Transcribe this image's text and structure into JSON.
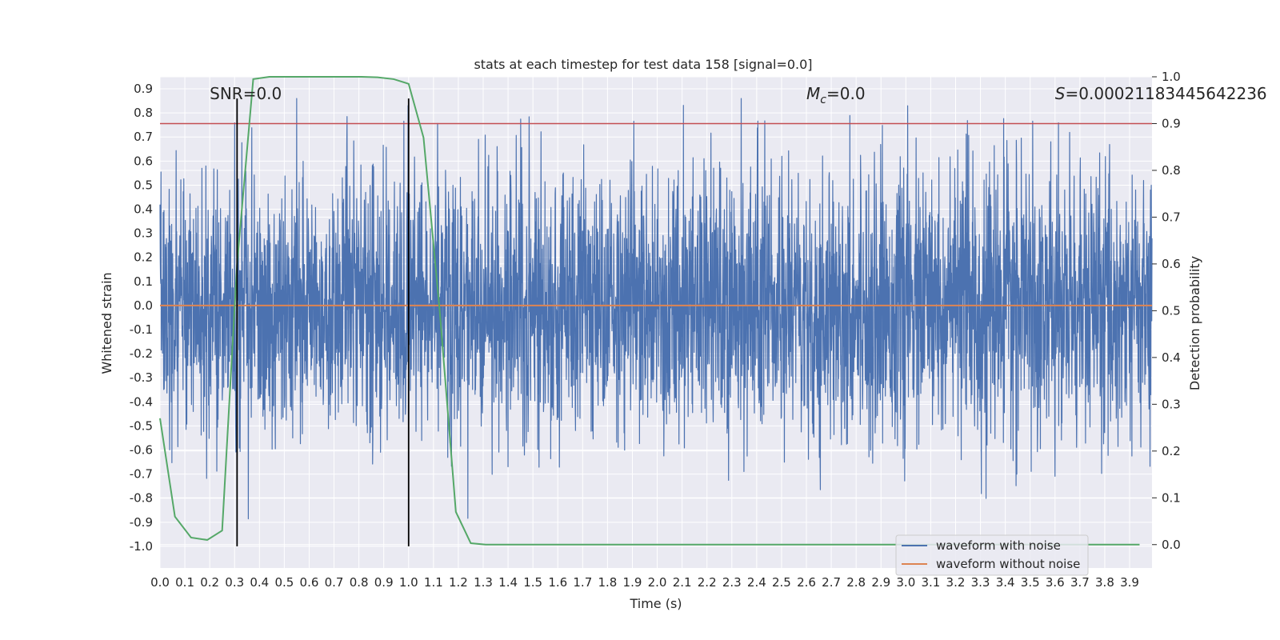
{
  "chart_data": {
    "type": "line",
    "title": "stats at each timestep for test data 158 [signal=0.0]",
    "xlabel": "Time (s)",
    "ylabel": "Whitened strain",
    "y2label": "Detection probability",
    "xlim": [
      0.0,
      3.99
    ],
    "ylim": [
      -1.09,
      0.95
    ],
    "y2lim": [
      -0.05,
      1.0
    ],
    "x_ticks": [
      "0.0",
      "0.1",
      "0.2",
      "0.3",
      "0.4",
      "0.5",
      "0.6",
      "0.7",
      "0.8",
      "0.9",
      "1.0",
      "1.1",
      "1.2",
      "1.3",
      "1.4",
      "1.5",
      "1.6",
      "1.7",
      "1.8",
      "1.9",
      "2.0",
      "2.1",
      "2.2",
      "2.3",
      "2.4",
      "2.5",
      "2.6",
      "2.7",
      "2.8",
      "2.9",
      "3.0",
      "3.1",
      "3.2",
      "3.3",
      "3.4",
      "3.5",
      "3.6",
      "3.7",
      "3.8",
      "3.9"
    ],
    "y_ticks": [
      "0.9",
      "0.8",
      "0.7",
      "0.6",
      "0.5",
      "0.4",
      "0.3",
      "0.2",
      "0.1",
      "0.0",
      "-0.1",
      "-0.2",
      "-0.3",
      "-0.4",
      "-0.5",
      "-0.6",
      "-0.7",
      "-0.8",
      "-0.9",
      "-1.0"
    ],
    "y2_ticks": [
      "1.0",
      "0.9",
      "0.8",
      "0.7",
      "0.6",
      "0.5",
      "0.4",
      "0.3",
      "0.2",
      "0.1",
      "0.0"
    ],
    "grid": true,
    "legend_position": "lower-right",
    "annotations": [
      {
        "text": "SNR=0.0",
        "x": 0.2,
        "y": 0.88
      },
      {
        "text": "M",
        "sub": "c",
        "suffix": "=0.0",
        "x": 2.6,
        "y": 0.88
      },
      {
        "text": "S",
        "suffix": "=0.00021183445642236",
        "x": 3.6,
        "y": 0.88
      }
    ],
    "series": [
      {
        "name": "waveform with noise",
        "color": "#4c72b0",
        "noise_amplitude": 0.5,
        "peak_min": -1.0,
        "peak_max": 0.86
      },
      {
        "name": "waveform without noise",
        "color": "#dd8452",
        "values_constant": 0.0
      }
    ],
    "detection_probability": {
      "color": "#55a868",
      "points": [
        [
          0.0,
          0.27
        ],
        [
          0.06,
          0.06
        ],
        [
          0.125,
          0.015
        ],
        [
          0.19,
          0.01
        ],
        [
          0.25,
          0.03
        ],
        [
          0.31,
          0.6
        ],
        [
          0.375,
          0.995
        ],
        [
          0.44,
          1.0
        ],
        [
          0.5,
          1.0
        ],
        [
          0.56,
          1.0
        ],
        [
          0.625,
          1.0
        ],
        [
          0.69,
          1.0
        ],
        [
          0.75,
          1.0
        ],
        [
          0.81,
          1.0
        ],
        [
          0.875,
          0.999
        ],
        [
          0.94,
          0.995
        ],
        [
          1.0,
          0.985
        ],
        [
          1.06,
          0.87
        ],
        [
          1.125,
          0.5
        ],
        [
          1.19,
          0.07
        ],
        [
          1.25,
          0.003
        ],
        [
          1.31,
          0.0
        ],
        [
          1.5,
          0.0
        ],
        [
          2.0,
          0.0
        ],
        [
          2.5,
          0.0
        ],
        [
          3.0,
          0.0
        ],
        [
          3.5,
          0.0
        ],
        [
          3.94,
          0.0
        ]
      ]
    },
    "threshold": {
      "value": 0.9,
      "color": "#c44e52"
    },
    "vertical_markers": [
      {
        "x": 0.31,
        "y_from": -1.0,
        "y_to": 0.86
      },
      {
        "x": 1.0,
        "y_from": -1.0,
        "y_to": 0.86
      }
    ]
  }
}
